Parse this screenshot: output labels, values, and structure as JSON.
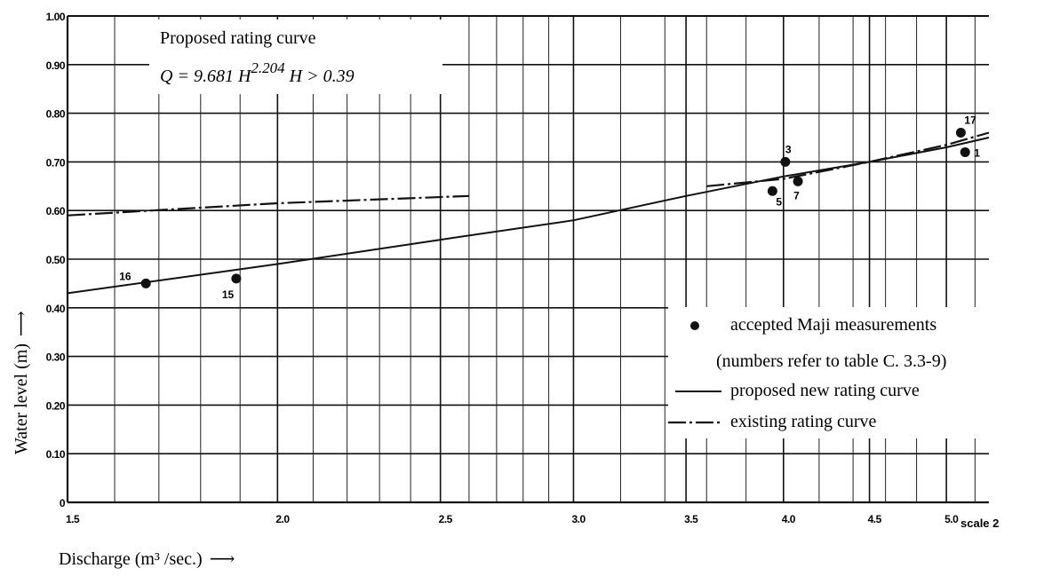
{
  "chart_data": {
    "type": "scatter",
    "title": "Proposed rating curve",
    "equation": {
      "prefix": "Q = 9.681 H",
      "exponent": "2.204",
      "condition": " H > 0.39"
    },
    "xlabel": "Discharge (m³ /sec.)",
    "ylabel": "Water level (m)",
    "scale_note": "scale 2",
    "xlim": [
      1.5,
      5.3
    ],
    "ylim": [
      0,
      1.0
    ],
    "x_scale": "log",
    "grid": true,
    "x_ticks": [
      {
        "v": 1.5,
        "label": "1.5"
      },
      {
        "v": 2.0,
        "label": "2.0"
      },
      {
        "v": 2.5,
        "label": "2.5"
      },
      {
        "v": 3.0,
        "label": "3.0"
      },
      {
        "v": 3.5,
        "label": "3.5"
      },
      {
        "v": 4.0,
        "label": "4.0"
      },
      {
        "v": 4.5,
        "label": "4.5"
      },
      {
        "v": 5.0,
        "label": "5.0"
      }
    ],
    "x_minor_grid": [
      1.6,
      1.7,
      1.8,
      1.9,
      2.1,
      2.2,
      2.3,
      2.4,
      2.6,
      2.7,
      2.8,
      2.9,
      3.2,
      3.4,
      3.6,
      3.8,
      4.2,
      4.4,
      4.6,
      4.8,
      5.2
    ],
    "y_ticks": [
      {
        "v": 0.0,
        "label": "0"
      },
      {
        "v": 0.1,
        "label": "0.10"
      },
      {
        "v": 0.2,
        "label": "0.20"
      },
      {
        "v": 0.3,
        "label": "0.30"
      },
      {
        "v": 0.4,
        "label": "0.40"
      },
      {
        "v": 0.5,
        "label": "0.50"
      },
      {
        "v": 0.6,
        "label": "0.60"
      },
      {
        "v": 0.7,
        "label": "0.70"
      },
      {
        "v": 0.8,
        "label": "0.80"
      },
      {
        "v": 0.9,
        "label": "0.90"
      },
      {
        "v": 1.0,
        "label": "1.00"
      }
    ],
    "points": [
      {
        "label": "16",
        "x": 1.67,
        "y": 0.45
      },
      {
        "label": "15",
        "x": 1.89,
        "y": 0.46
      },
      {
        "label": "3",
        "x": 4.01,
        "y": 0.7
      },
      {
        "label": "5",
        "x": 3.94,
        "y": 0.64
      },
      {
        "label": "7",
        "x": 4.08,
        "y": 0.66
      },
      {
        "label": "17",
        "x": 5.1,
        "y": 0.76
      },
      {
        "label": "1",
        "x": 5.13,
        "y": 0.72
      }
    ],
    "proposed_curve": [
      [
        1.5,
        0.43
      ],
      [
        2.0,
        0.49
      ],
      [
        2.5,
        0.54
      ],
      [
        3.0,
        0.58
      ],
      [
        3.5,
        0.63
      ],
      [
        4.0,
        0.67
      ],
      [
        4.5,
        0.7
      ],
      [
        5.0,
        0.73
      ],
      [
        5.3,
        0.75
      ]
    ],
    "existing_curve_segments": [
      [
        [
          1.5,
          0.59
        ],
        [
          2.0,
          0.615
        ],
        [
          2.6,
          0.63
        ]
      ],
      [
        [
          3.6,
          0.65
        ],
        [
          4.0,
          0.665
        ],
        [
          4.5,
          0.7
        ],
        [
          5.0,
          0.735
        ],
        [
          5.3,
          0.76
        ]
      ]
    ],
    "legend": {
      "points_label": "accepted Maji measurements",
      "points_sublabel": "(numbers refer to table C. 3.3-9)",
      "proposed_label": "proposed new rating curve",
      "existing_label": "existing rating curve"
    }
  }
}
